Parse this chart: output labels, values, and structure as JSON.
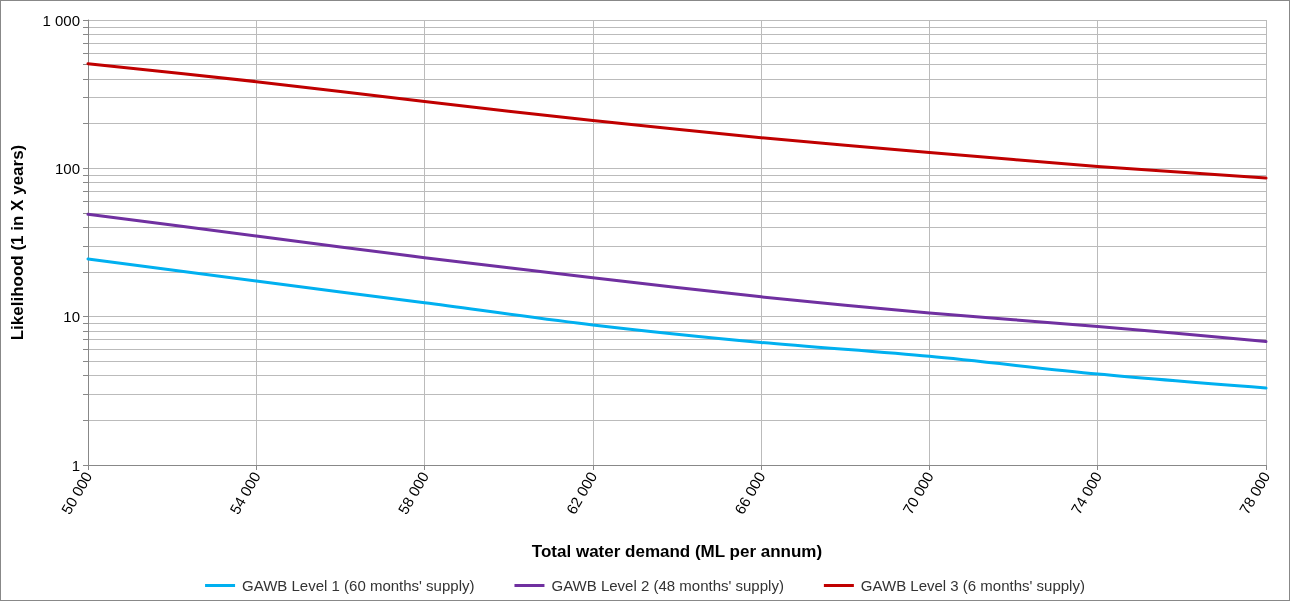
{
  "chart_data": {
    "type": "line",
    "xlabel": "Total water demand (ML per annum)",
    "ylabel": "Likelihood (1 in X years)",
    "x": [
      50000,
      54000,
      58000,
      62000,
      66000,
      70000,
      74000,
      78000
    ],
    "series": [
      {
        "name": "GAWB Level 1 (60 months' supply)",
        "color": "#00b0f0",
        "values": [
          24.5,
          17.4,
          12.4,
          8.8,
          6.7,
          5.4,
          4.1,
          3.3
        ]
      },
      {
        "name": "GAWB Level 2 (48 months' supply)",
        "color": "#7030a0",
        "values": [
          49,
          35,
          25,
          18.3,
          13.6,
          10.6,
          8.6,
          6.8
        ]
      },
      {
        "name": "GAWB Level 3 (6 months' supply)",
        "color": "#c00000",
        "values": [
          507,
          384,
          282,
          210,
          161,
          128,
          103,
          86
        ]
      }
    ],
    "log": "y",
    "xlim": [
      50000,
      78000
    ],
    "xticks": [
      {
        "value": 50000,
        "label": "50 000"
      },
      {
        "value": 54000,
        "label": "54 000"
      },
      {
        "value": 58000,
        "label": "58 000"
      },
      {
        "value": 62000,
        "label": "62 000"
      },
      {
        "value": 66000,
        "label": "66 000"
      },
      {
        "value": 70000,
        "label": "70 000"
      },
      {
        "value": 74000,
        "label": "74 000"
      },
      {
        "value": 78000,
        "label": "78 000"
      }
    ],
    "ylim": [
      1,
      1000
    ],
    "yticks": [
      1,
      {
        "value": 2,
        "label": null
      },
      {
        "value": 3,
        "label": null
      },
      {
        "value": 4,
        "label": null
      },
      {
        "value": 5,
        "label": null
      },
      {
        "value": 6,
        "label": null
      },
      {
        "value": 7,
        "label": null
      },
      {
        "value": 8,
        "label": null
      },
      {
        "value": 9,
        "label": null
      },
      10,
      {
        "value": 20,
        "label": null
      },
      {
        "value": 30,
        "label": null
      },
      {
        "value": 40,
        "label": null
      },
      {
        "value": 50,
        "label": null
      },
      {
        "value": 60,
        "label": null
      },
      {
        "value": 70,
        "label": null
      },
      {
        "value": 80,
        "label": null
      },
      {
        "value": 90,
        "label": null
      },
      100,
      {
        "value": 200,
        "label": null
      },
      {
        "value": 300,
        "label": null
      },
      {
        "value": 400,
        "label": null
      },
      {
        "value": 500,
        "label": null
      },
      {
        "value": 600,
        "label": null
      },
      {
        "value": 700,
        "label": null
      },
      {
        "value": 800,
        "label": null
      },
      {
        "value": 900,
        "label": null
      },
      {
        "value": 1000,
        "label": "1 000"
      }
    ],
    "grid": true,
    "legend": "bottom",
    "marker": "none",
    "line_style": "solid"
  }
}
